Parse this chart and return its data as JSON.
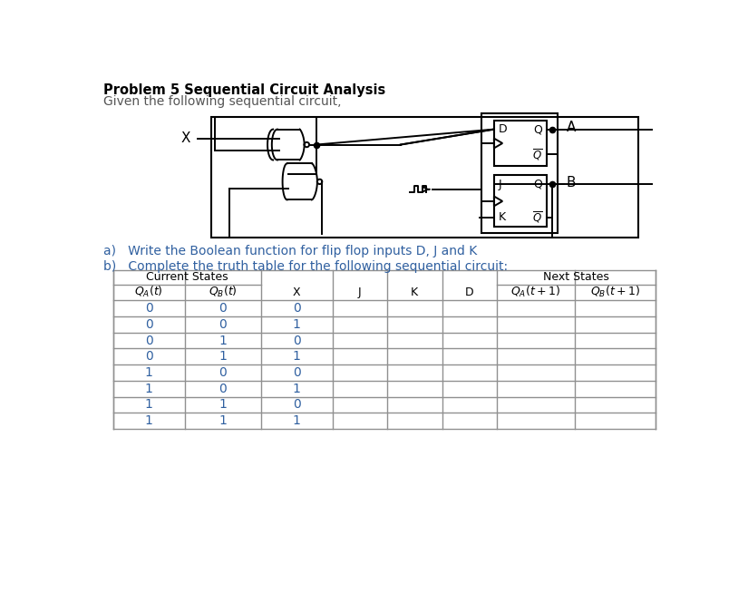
{
  "title": "Problem 5 Sequential Circuit Analysis",
  "subtitle": "Given the following sequential circuit,",
  "part_a": "a)   Write the Boolean function for flip flop inputs D, J and K",
  "part_b": "b)   Complete the truth table for the following sequential circuit:",
  "bg_color": "#ffffff",
  "title_color": "#000000",
  "subtitle_color": "#555555",
  "text_color": "#3060a0",
  "circuit_color": "#000000",
  "table_header_color": "#000000",
  "table_data_color": "#3060a0",
  "table_border_color": "#909090",
  "qa_col": [
    0,
    0,
    0,
    0,
    1,
    1,
    1,
    1
  ],
  "qb_col": [
    0,
    0,
    1,
    1,
    0,
    0,
    1,
    1
  ],
  "x_col": [
    0,
    1,
    0,
    1,
    0,
    1,
    0,
    1
  ]
}
